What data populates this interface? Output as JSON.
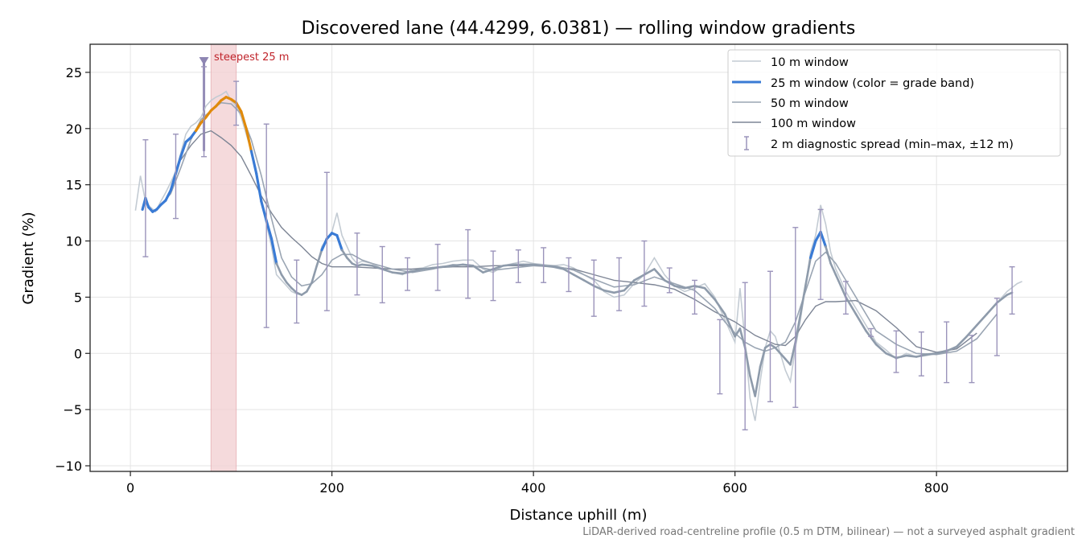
{
  "chart_data": {
    "type": "line",
    "title": "Discovered lane (44.4299, 6.0381) — rolling window gradients",
    "xlabel": "Distance uphill (m)",
    "ylabel": "Gradient (%)",
    "xlim": [
      -40,
      930
    ],
    "ylim": [
      -10.5,
      27.5
    ],
    "xticks": [
      0,
      200,
      400,
      600,
      800
    ],
    "yticks": [
      -10,
      -5,
      0,
      5,
      10,
      15,
      20,
      25
    ],
    "grid": true,
    "legend_position": "top-right",
    "footnote": "LiDAR-derived road-centreline profile (0.5 m DTM, bilinear) — not a surveyed asphalt gradient",
    "highlight": {
      "label": "steepest 25 m",
      "x_range": [
        80,
        105
      ],
      "marker_x": 73,
      "marker_y": 26,
      "color": "#c0242b"
    },
    "colors": {
      "w10": "#c3cbd3",
      "w25_moderate": "#3a7bd5",
      "w25_steep": "#e08a0b",
      "w25_base": "#8e9bab",
      "w50": "#9aa5b3",
      "w100": "#7d8595",
      "spread": "#9b94bb",
      "highlight_fill": "#f3d2d4"
    },
    "series": [
      {
        "name": "10 m window",
        "x": [
          5,
          10,
          15,
          20,
          25,
          30,
          35,
          40,
          45,
          50,
          55,
          60,
          65,
          70,
          75,
          80,
          85,
          90,
          95,
          100,
          105,
          110,
          115,
          120,
          125,
          130,
          135,
          140,
          145,
          150,
          155,
          160,
          165,
          170,
          175,
          180,
          185,
          190,
          195,
          200,
          205,
          210,
          215,
          220,
          225,
          230,
          240,
          250,
          260,
          270,
          280,
          290,
          300,
          310,
          320,
          330,
          340,
          350,
          360,
          370,
          380,
          390,
          400,
          410,
          420,
          430,
          440,
          450,
          460,
          470,
          480,
          490,
          500,
          510,
          520,
          530,
          540,
          550,
          560,
          570,
          580,
          590,
          600,
          605,
          610,
          615,
          620,
          625,
          630,
          635,
          640,
          645,
          650,
          655,
          660,
          665,
          670,
          675,
          680,
          685,
          690,
          695,
          700,
          705,
          710,
          720,
          730,
          740,
          750,
          760,
          770,
          780,
          790,
          800,
          810,
          820,
          830,
          840,
          850,
          860,
          870,
          880,
          885
        ],
        "values": [
          12.7,
          15.8,
          13.5,
          13.0,
          12.6,
          13.5,
          14.3,
          15.2,
          16.2,
          17.8,
          19.5,
          20.2,
          20.5,
          21.0,
          22.0,
          22.5,
          22.8,
          23.0,
          23.3,
          22.5,
          22.0,
          21.0,
          19.5,
          18.0,
          16.0,
          13.8,
          11.5,
          9.5,
          7.0,
          6.5,
          6.0,
          5.5,
          5.3,
          5.2,
          5.5,
          6.3,
          7.8,
          9.5,
          10.2,
          10.8,
          12.5,
          10.5,
          9.5,
          8.5,
          8.0,
          8.2,
          8.0,
          7.5,
          7.2,
          7.0,
          7.5,
          7.6,
          7.9,
          8.0,
          8.2,
          8.3,
          8.3,
          7.5,
          7.2,
          7.8,
          8.0,
          8.2,
          8.0,
          7.9,
          7.8,
          7.9,
          7.6,
          7.0,
          6.5,
          5.5,
          5.0,
          5.2,
          6.2,
          7.0,
          8.5,
          7.0,
          6.0,
          5.5,
          5.8,
          6.2,
          5.0,
          3.0,
          1.0,
          5.8,
          1.0,
          -4.0,
          -6.0,
          -2.5,
          0.5,
          2.0,
          1.5,
          0.0,
          -1.5,
          -2.5,
          0.5,
          3.0,
          6.0,
          9.0,
          10.5,
          13.2,
          11.5,
          9.0,
          7.5,
          6.5,
          5.5,
          4.0,
          2.5,
          1.0,
          0.3,
          -0.5,
          0.0,
          -0.3,
          -0.2,
          0.0,
          0.3,
          0.5,
          1.5,
          2.5,
          3.5,
          4.5,
          5.5,
          6.2,
          6.4
        ]
      },
      {
        "name": "25 m window (color = grade band)",
        "x": [
          12,
          15,
          18,
          22,
          26,
          30,
          35,
          40,
          45,
          50,
          55,
          60,
          65,
          70,
          75,
          80,
          85,
          90,
          95,
          100,
          105,
          110,
          115,
          120,
          125,
          130,
          135,
          140,
          145,
          150,
          155,
          160,
          165,
          170,
          175,
          180,
          185,
          190,
          195,
          200,
          205,
          210,
          215,
          220,
          225,
          230,
          240,
          250,
          260,
          270,
          280,
          290,
          300,
          310,
          320,
          330,
          340,
          350,
          360,
          370,
          380,
          390,
          400,
          410,
          420,
          430,
          440,
          450,
          460,
          470,
          480,
          490,
          500,
          510,
          520,
          530,
          540,
          550,
          560,
          570,
          580,
          590,
          600,
          605,
          610,
          615,
          620,
          625,
          630,
          635,
          640,
          645,
          650,
          655,
          660,
          665,
          670,
          675,
          680,
          685,
          690,
          695,
          700,
          705,
          710,
          720,
          730,
          740,
          750,
          760,
          770,
          780,
          790,
          800,
          810,
          820,
          830,
          840,
          850,
          860,
          870,
          875
        ],
        "values": [
          12.8,
          13.8,
          13.0,
          12.6,
          12.8,
          13.2,
          13.6,
          14.5,
          16.0,
          17.5,
          18.8,
          19.2,
          19.8,
          20.5,
          21.0,
          21.6,
          22.0,
          22.5,
          22.8,
          22.6,
          22.3,
          21.5,
          20.0,
          18.0,
          16.0,
          13.5,
          11.8,
          10.2,
          8.0,
          7.0,
          6.3,
          5.8,
          5.4,
          5.2,
          5.5,
          6.3,
          7.8,
          9.2,
          10.2,
          10.7,
          10.5,
          9.2,
          8.5,
          8.0,
          7.8,
          7.9,
          7.8,
          7.5,
          7.2,
          7.1,
          7.3,
          7.5,
          7.6,
          7.7,
          7.8,
          7.9,
          7.8,
          7.2,
          7.5,
          7.8,
          7.9,
          7.9,
          7.9,
          7.8,
          7.7,
          7.5,
          7.0,
          6.5,
          6.0,
          5.6,
          5.4,
          5.6,
          6.5,
          7.0,
          7.5,
          6.5,
          6.0,
          5.8,
          6.0,
          5.8,
          4.8,
          3.5,
          1.5,
          2.2,
          0.5,
          -2.0,
          -3.8,
          -1.2,
          0.5,
          0.8,
          0.5,
          0.0,
          -0.5,
          -1.0,
          1.0,
          3.5,
          6.0,
          8.5,
          10.0,
          10.8,
          9.5,
          8.0,
          7.0,
          6.0,
          5.0,
          3.5,
          2.0,
          0.8,
          0.0,
          -0.4,
          -0.2,
          -0.3,
          -0.1,
          0.0,
          0.2,
          0.6,
          1.5,
          2.5,
          3.5,
          4.5,
          5.2,
          5.4
        ]
      },
      {
        "name": "50 m window",
        "x": [
          30,
          40,
          50,
          60,
          70,
          80,
          90,
          100,
          110,
          120,
          130,
          140,
          150,
          160,
          170,
          180,
          190,
          200,
          210,
          220,
          230,
          240,
          260,
          280,
          300,
          320,
          340,
          360,
          380,
          400,
          420,
          440,
          460,
          480,
          500,
          520,
          540,
          560,
          580,
          590,
          600,
          610,
          620,
          630,
          640,
          650,
          660,
          670,
          680,
          690,
          700,
          710,
          720,
          730,
          740,
          760,
          780,
          800,
          820,
          840,
          860
        ],
        "values": [
          13.2,
          14.2,
          16.5,
          19.0,
          20.8,
          21.6,
          22.3,
          22.2,
          21.3,
          19.0,
          15.8,
          12.0,
          8.5,
          6.8,
          6.0,
          6.2,
          7.0,
          8.3,
          8.8,
          8.8,
          8.3,
          8.0,
          7.5,
          7.2,
          7.5,
          7.9,
          7.8,
          7.4,
          7.6,
          7.8,
          7.8,
          7.4,
          6.6,
          5.9,
          6.1,
          6.8,
          6.2,
          5.6,
          4.0,
          2.8,
          1.8,
          1.0,
          0.5,
          0.2,
          0.5,
          1.0,
          2.8,
          5.5,
          8.2,
          9.0,
          8.0,
          6.5,
          5.0,
          3.5,
          2.0,
          0.8,
          0.0,
          -0.1,
          0.2,
          1.3,
          3.5
        ]
      },
      {
        "name": "100 m window",
        "x": [
          50,
          60,
          70,
          80,
          90,
          100,
          110,
          120,
          130,
          140,
          150,
          160,
          170,
          180,
          190,
          200,
          220,
          240,
          260,
          280,
          300,
          320,
          340,
          360,
          380,
          400,
          420,
          440,
          460,
          480,
          500,
          520,
          540,
          560,
          580,
          600,
          620,
          640,
          650,
          660,
          670,
          680,
          690,
          700,
          720,
          740,
          760,
          780,
          800,
          820,
          840
        ],
        "values": [
          17.2,
          18.5,
          19.5,
          19.8,
          19.2,
          18.5,
          17.5,
          15.8,
          14.0,
          12.5,
          11.2,
          10.3,
          9.5,
          8.6,
          8.0,
          7.7,
          7.7,
          7.6,
          7.5,
          7.5,
          7.6,
          7.7,
          7.7,
          7.8,
          7.8,
          7.8,
          7.7,
          7.5,
          7.0,
          6.5,
          6.3,
          6.1,
          5.7,
          4.8,
          3.7,
          2.8,
          1.6,
          0.8,
          0.7,
          1.5,
          3.0,
          4.2,
          4.6,
          4.6,
          4.7,
          3.8,
          2.3,
          0.6,
          0.1,
          0.4,
          1.8
        ]
      }
    ],
    "spread_bars": {
      "name": "2 m diagnostic spread (min–max, ±12 m)",
      "x": [
        15,
        45,
        73,
        105,
        135,
        165,
        195,
        225,
        250,
        275,
        305,
        335,
        360,
        385,
        410,
        435,
        460,
        485,
        510,
        535,
        560,
        585,
        610,
        635,
        660,
        685,
        710,
        735,
        760,
        785,
        810,
        835,
        860,
        875
      ],
      "min": [
        8.6,
        12.0,
        17.5,
        20.3,
        2.3,
        2.7,
        3.8,
        5.2,
        4.5,
        5.6,
        5.6,
        4.9,
        4.7,
        6.3,
        6.3,
        5.5,
        3.3,
        3.8,
        4.2,
        5.4,
        3.5,
        -3.6,
        -6.8,
        -4.3,
        -4.8,
        4.8,
        3.5,
        1.5,
        -1.7,
        -2.0,
        -2.6,
        -2.6,
        -0.2,
        3.5
      ],
      "max": [
        19.0,
        19.5,
        25.5,
        24.2,
        20.4,
        8.3,
        16.1,
        10.7,
        9.5,
        8.5,
        9.7,
        11.0,
        9.1,
        9.2,
        9.4,
        8.5,
        8.3,
        8.5,
        10.0,
        7.6,
        6.5,
        3.0,
        6.3,
        7.3,
        11.2,
        12.8,
        6.4,
        2.2,
        2.0,
        1.9,
        2.8,
        1.6,
        4.9,
        7.7
      ]
    }
  }
}
